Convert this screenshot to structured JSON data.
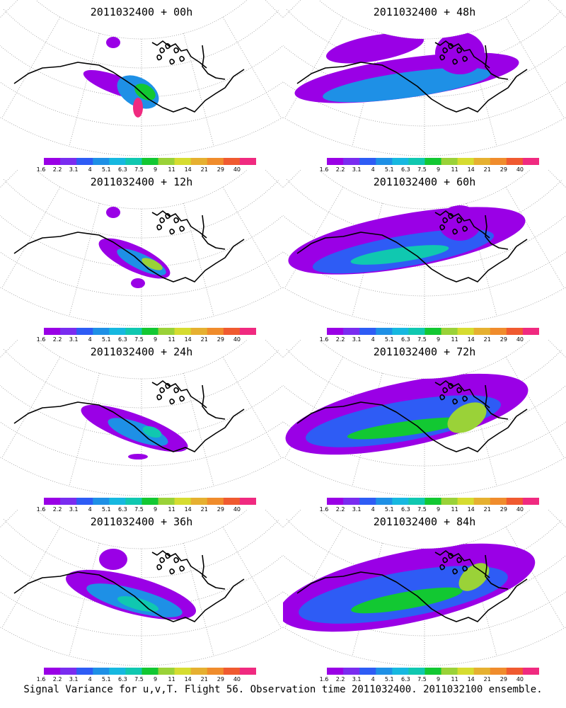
{
  "panels": [
    {
      "title": "2011032400 + 00h",
      "col": 0,
      "row": 0
    },
    {
      "title": "2011032400 + 48h",
      "col": 1,
      "row": 0
    },
    {
      "title": "2011032400 + 12h",
      "col": 0,
      "row": 1
    },
    {
      "title": "2011032400 + 60h",
      "col": 1,
      "row": 1
    },
    {
      "title": "2011032400 + 24h",
      "col": 0,
      "row": 2
    },
    {
      "title": "2011032400 + 72h",
      "col": 1,
      "row": 2
    },
    {
      "title": "2011032400 + 36h",
      "col": 0,
      "row": 3
    },
    {
      "title": "2011032400 + 84h",
      "col": 1,
      "row": 3
    }
  ],
  "colorbar": {
    "labels": [
      "1.6",
      "2.2",
      "3.1",
      "4",
      "5.1",
      "6.3",
      "7.5",
      "9",
      "11",
      "14",
      "21",
      "29",
      "40"
    ],
    "colors": [
      "#9a00e6",
      "#7a2cf0",
      "#2e5cf5",
      "#1e90e6",
      "#16b8e0",
      "#10c8b0",
      "#12c832",
      "#9ad238",
      "#d6dc30",
      "#e6b030",
      "#f08c2c",
      "#f05a30",
      "#f02a80"
    ]
  },
  "caption": "Signal Variance for u,v,T. Flight 56. Observation time 2011032400. 2011032100 ensemble."
}
